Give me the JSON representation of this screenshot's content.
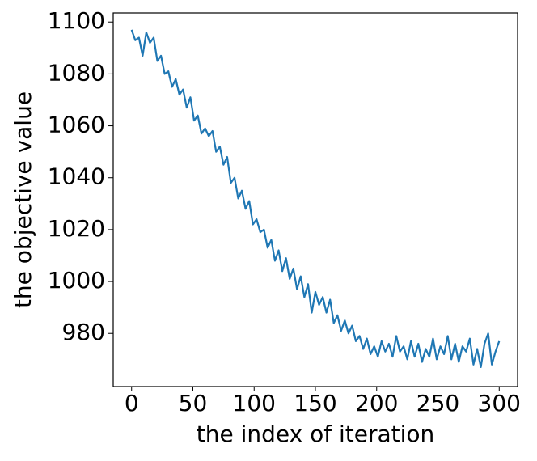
{
  "chart_data": {
    "type": "line",
    "xlabel": "the index of iteration",
    "ylabel": "the objective value",
    "x": [
      0,
      3,
      6,
      9,
      12,
      15,
      18,
      21,
      24,
      27,
      30,
      33,
      36,
      39,
      42,
      45,
      48,
      51,
      54,
      57,
      60,
      63,
      66,
      69,
      72,
      75,
      78,
      81,
      84,
      87,
      90,
      93,
      96,
      99,
      102,
      105,
      108,
      111,
      114,
      117,
      120,
      123,
      126,
      129,
      132,
      135,
      138,
      141,
      144,
      147,
      150,
      153,
      156,
      159,
      162,
      165,
      168,
      171,
      174,
      177,
      180,
      183,
      186,
      189,
      192,
      195,
      198,
      201,
      204,
      207,
      210,
      213,
      216,
      219,
      222,
      225,
      228,
      231,
      234,
      237,
      240,
      243,
      246,
      249,
      252,
      255,
      258,
      261,
      264,
      267,
      270,
      273,
      276,
      279,
      282,
      285,
      288,
      291,
      294,
      297,
      300
    ],
    "series": [
      {
        "color": "#1f77b4",
        "values": [
          1097,
          1093,
          1094,
          1087,
          1096,
          1092,
          1094,
          1085,
          1087,
          1080,
          1081,
          1075,
          1078,
          1072,
          1074,
          1067,
          1071,
          1062,
          1064,
          1057,
          1059,
          1056,
          1058,
          1050,
          1052,
          1045,
          1048,
          1038,
          1040,
          1032,
          1035,
          1028,
          1031,
          1022,
          1024,
          1019,
          1020,
          1013,
          1016,
          1008,
          1012,
          1004,
          1009,
          1001,
          1005,
          997,
          1002,
          994,
          999,
          988,
          996,
          991,
          994,
          988,
          993,
          984,
          987,
          981,
          985,
          980,
          983,
          977,
          979,
          974,
          978,
          972,
          975,
          971,
          977,
          973,
          976,
          971,
          979,
          973,
          975,
          970,
          977,
          971,
          976,
          969,
          974,
          971,
          978,
          970,
          975,
          972,
          979,
          970,
          976,
          969,
          975,
          973,
          978,
          968,
          974,
          967,
          976,
          980,
          968,
          973,
          977
        ]
      }
    ],
    "xlim": [
      -15,
      315
    ],
    "ylim": [
      959.5,
      1103.5
    ],
    "xticks": [
      0,
      50,
      100,
      150,
      200,
      250,
      300
    ],
    "yticks": [
      980,
      1000,
      1020,
      1040,
      1060,
      1080,
      1100
    ]
  }
}
